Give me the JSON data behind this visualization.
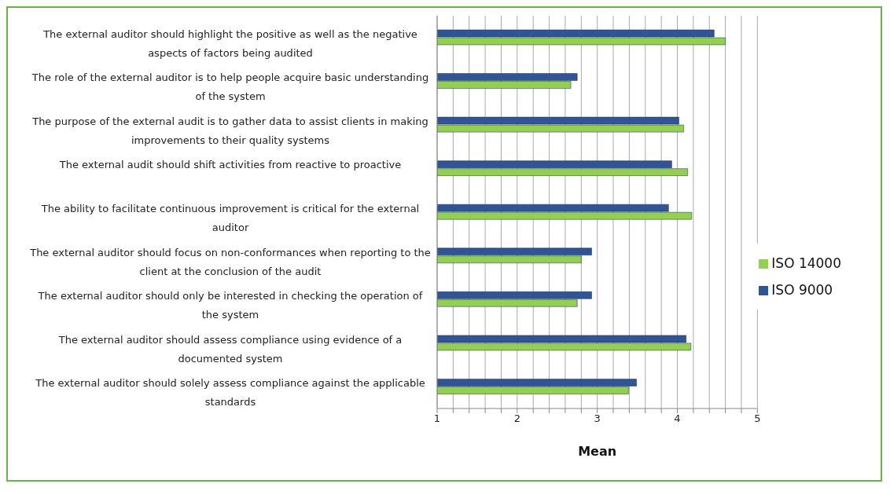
{
  "chart_data": {
    "type": "bar",
    "orientation": "horizontal",
    "xlabel": "Mean",
    "categories": [
      "The external auditor should highlight the positive as well as the negative aspects of factors being audited",
      "The role of the external auditor is to help people acquire basic understanding of the system",
      "The purpose of the external audit is to gather data to assist clients in making improvements to their quality systems",
      "The external audit should shift activities from reactive to proactive",
      "The ability to facilitate continuous improvement is critical for the external auditor",
      "The external auditor should focus on non-conformances when reporting to the client at the conclusion of the audit",
      "The external auditor should only be interested in checking the operation of the system",
      "The external auditor should assess compliance using evidence of a documented system",
      "The external auditor should solely assess compliance against the applicable standards"
    ],
    "series": [
      {
        "name": "ISO 9000",
        "color": "#2f5597",
        "values": [
          4.46,
          2.75,
          4.02,
          3.93,
          3.89,
          2.93,
          2.93,
          4.11,
          3.49
        ]
      },
      {
        "name": "ISO 14000",
        "color": "#92d050",
        "values": [
          4.6,
          2.67,
          4.08,
          4.13,
          4.18,
          2.8,
          2.75,
          4.17,
          3.39
        ]
      }
    ],
    "xlim": [
      1,
      5
    ],
    "xticks": [
      1,
      {
        "value": 1.2,
        "label": null
      },
      {
        "value": 1.4,
        "label": null
      },
      {
        "value": 1.6,
        "label": null
      },
      {
        "value": 1.8,
        "label": null
      },
      2,
      {
        "value": 2.2,
        "label": null
      },
      {
        "value": 2.4,
        "label": null
      },
      {
        "value": 2.6,
        "label": null
      },
      {
        "value": 2.8,
        "label": null
      },
      3,
      {
        "value": 3.2,
        "label": null
      },
      {
        "value": 3.4,
        "label": null
      },
      {
        "value": 3.6,
        "label": null
      },
      {
        "value": 3.8,
        "label": null
      },
      4,
      {
        "value": 4.2,
        "label": null
      },
      {
        "value": 4.4,
        "label": null
      },
      {
        "value": 4.6,
        "label": null
      },
      {
        "value": 4.8,
        "label": null
      },
      5
    ],
    "grid": "x",
    "legend": "right"
  }
}
